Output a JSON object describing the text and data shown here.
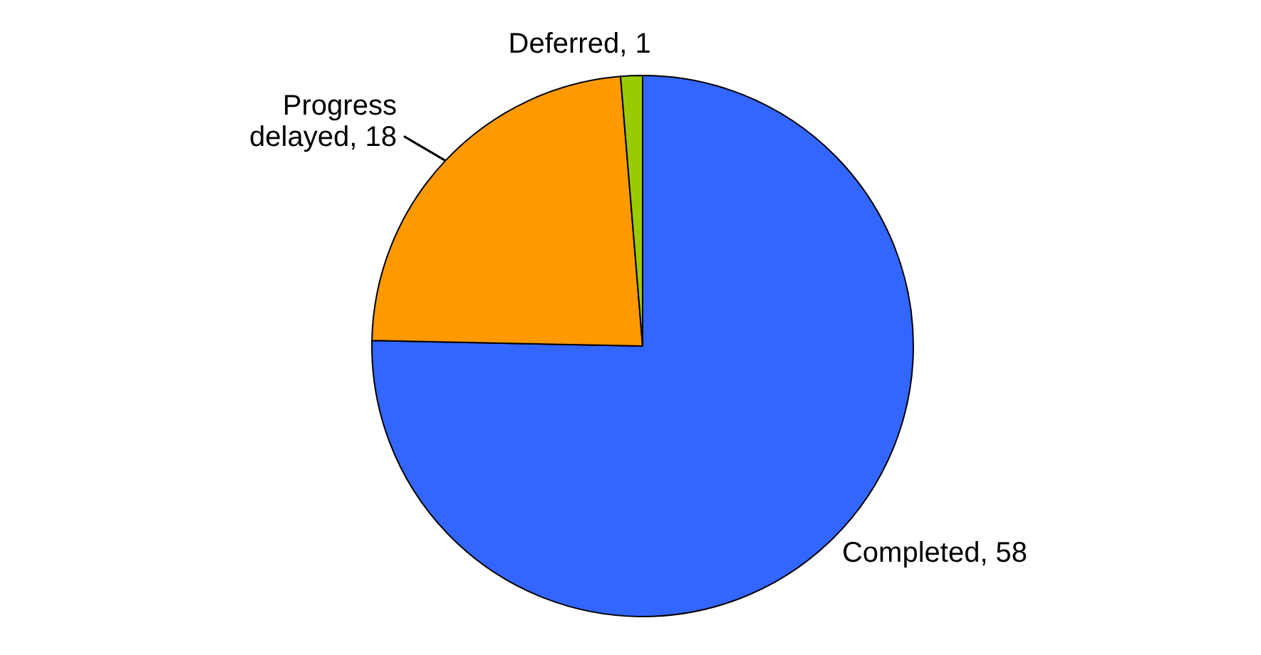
{
  "chart_data": {
    "type": "pie",
    "categories": [
      "Completed",
      "Progress delayed",
      "Deferred"
    ],
    "values": [
      58,
      18,
      1
    ],
    "value_labels": [
      ", 58",
      ", 18",
      ", 1"
    ],
    "colors": [
      "#3366ff",
      "#ff9900",
      "#99cc00"
    ]
  }
}
